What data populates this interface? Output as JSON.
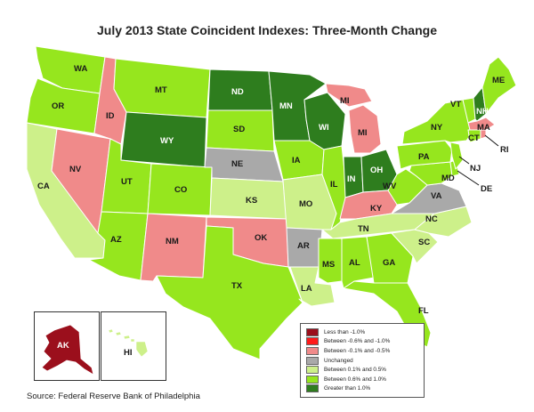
{
  "title": "July 2013 State Coincident Indexes: Three-Month Change",
  "source": "Source: Federal Reserve Bank of Philadelphia",
  "colors": {
    "lt_-1": "#9b0f1c",
    "-0.6_-1": "#ff1a1a",
    "-0.1_-0.5": "#f08a8a",
    "unchanged": "#a9a9a9",
    "0.1_0.5": "#cdf08a",
    "0.6_1": "#96e61e",
    "gt_1": "#2e7d1e"
  },
  "legend": [
    {
      "label": "Less than -1.0%",
      "color_key": "lt_-1"
    },
    {
      "label": "Between -0.6% and -1.0%",
      "color_key": "-0.6_-1"
    },
    {
      "label": "Between -0.1% and -0.5%",
      "color_key": "-0.1_-0.5"
    },
    {
      "label": "Unchanged",
      "color_key": "unchanged"
    },
    {
      "label": "Between 0.1% and 0.5%",
      "color_key": "0.1_0.5"
    },
    {
      "label": "Between 0.6% and 1.0%",
      "color_key": "0.6_1"
    },
    {
      "label": "Greater than 1.0%",
      "color_key": "gt_1"
    }
  ],
  "states": {
    "WA": {
      "label": "WA",
      "cat": "0.6_1"
    },
    "OR": {
      "label": "OR",
      "cat": "0.6_1"
    },
    "CA": {
      "label": "CA",
      "cat": "0.1_0.5"
    },
    "ID": {
      "label": "ID",
      "cat": "-0.1_-0.5"
    },
    "NV": {
      "label": "NV",
      "cat": "-0.1_-0.5"
    },
    "MT": {
      "label": "MT",
      "cat": "0.6_1"
    },
    "WY": {
      "label": "WY",
      "cat": "gt_1"
    },
    "UT": {
      "label": "UT",
      "cat": "0.6_1"
    },
    "AZ": {
      "label": "AZ",
      "cat": "0.6_1"
    },
    "CO": {
      "label": "CO",
      "cat": "0.6_1"
    },
    "NM": {
      "label": "NM",
      "cat": "-0.1_-0.5"
    },
    "ND": {
      "label": "ND",
      "cat": "gt_1"
    },
    "SD": {
      "label": "SD",
      "cat": "0.6_1"
    },
    "NE": {
      "label": "NE",
      "cat": "unchanged"
    },
    "KS": {
      "label": "KS",
      "cat": "0.1_0.5"
    },
    "OK": {
      "label": "OK",
      "cat": "-0.1_-0.5"
    },
    "TX": {
      "label": "TX",
      "cat": "0.6_1"
    },
    "MN": {
      "label": "MN",
      "cat": "gt_1"
    },
    "IA": {
      "label": "IA",
      "cat": "0.6_1"
    },
    "MO": {
      "label": "MO",
      "cat": "0.1_0.5"
    },
    "AR": {
      "label": "AR",
      "cat": "unchanged"
    },
    "LA": {
      "label": "LA",
      "cat": "0.1_0.5"
    },
    "WI": {
      "label": "WI",
      "cat": "gt_1"
    },
    "IL": {
      "label": "IL",
      "cat": "0.6_1"
    },
    "MI": {
      "label": "MI",
      "cat": "-0.1_-0.5"
    },
    "MI_UP": {
      "label": "MI",
      "cat": "-0.1_-0.5"
    },
    "IN": {
      "label": "IN",
      "cat": "gt_1"
    },
    "OH": {
      "label": "OH",
      "cat": "gt_1"
    },
    "KY": {
      "label": "KY",
      "cat": "-0.1_-0.5"
    },
    "TN": {
      "label": "TN",
      "cat": "0.1_0.5"
    },
    "MS": {
      "label": "MS",
      "cat": "0.6_1"
    },
    "AL": {
      "label": "AL",
      "cat": "0.6_1"
    },
    "GA": {
      "label": "GA",
      "cat": "0.6_1"
    },
    "FL": {
      "label": "FL",
      "cat": "0.6_1"
    },
    "SC": {
      "label": "SC",
      "cat": "0.1_0.5"
    },
    "NC": {
      "label": "NC",
      "cat": "0.1_0.5"
    },
    "VA": {
      "label": "VA",
      "cat": "unchanged"
    },
    "WV": {
      "label": "WV",
      "cat": "0.6_1"
    },
    "PA": {
      "label": "PA",
      "cat": "0.6_1"
    },
    "NY": {
      "label": "NY",
      "cat": "0.6_1"
    },
    "VT": {
      "label": "VT",
      "cat": "0.6_1"
    },
    "NH": {
      "label": "NH",
      "cat": "gt_1"
    },
    "ME": {
      "label": "ME",
      "cat": "0.6_1"
    },
    "MA": {
      "label": "MA",
      "cat": "-0.1_-0.5"
    },
    "CT": {
      "label": "CT",
      "cat": "0.6_1"
    },
    "RI": {
      "label": "RI",
      "cat": "-0.1_-0.5"
    },
    "NJ": {
      "label": "NJ",
      "cat": "0.6_1"
    },
    "DE": {
      "label": "DE",
      "cat": "0.6_1"
    },
    "MD": {
      "label": "MD",
      "cat": "0.6_1"
    },
    "AK": {
      "label": "AK",
      "cat": "lt_-1"
    },
    "HI": {
      "label": "HI",
      "cat": "0.1_0.5"
    }
  }
}
